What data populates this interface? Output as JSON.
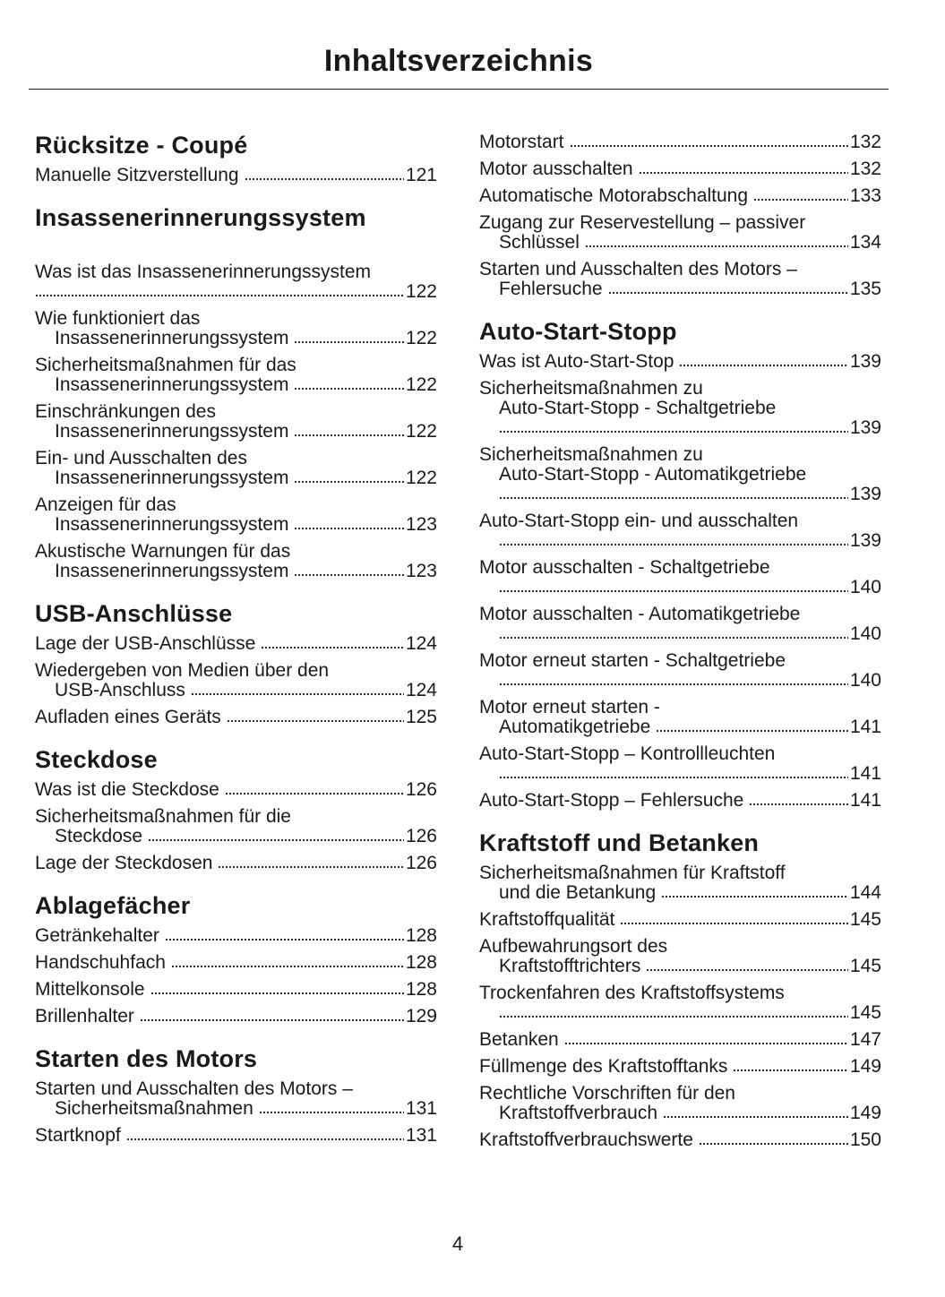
{
  "title": "Inhaltsverzeichnis",
  "page_number": "4",
  "columns": [
    {
      "blocks": [
        {
          "type": "heading",
          "text": "Rücksitze - Coupé"
        },
        {
          "type": "entry",
          "lines": [
            "Manuelle Sitzverstellung"
          ],
          "page": "121"
        },
        {
          "type": "heading",
          "text": "Insassenerinnerungssystem",
          "extra_gap": true
        },
        {
          "type": "entry",
          "lines": [
            "Was ist das Insassenerinnerungssystem",
            ""
          ],
          "page": "122",
          "leader_unindented": true
        },
        {
          "type": "entry",
          "lines": [
            "Wie funktioniert das",
            "Insassenerinnerungssystem"
          ],
          "page": "122"
        },
        {
          "type": "entry",
          "lines": [
            "Sicherheitsmaßnahmen für das",
            "Insassenerinnerungssystem"
          ],
          "page": "122"
        },
        {
          "type": "entry",
          "lines": [
            "Einschränkungen des",
            "Insassenerinnerungssystem"
          ],
          "page": "122"
        },
        {
          "type": "entry",
          "lines": [
            "Ein- und Ausschalten des",
            "Insassenerinnerungssystem"
          ],
          "page": "122"
        },
        {
          "type": "entry",
          "lines": [
            "Anzeigen für das",
            "Insassenerinnerungssystem"
          ],
          "page": "123"
        },
        {
          "type": "entry",
          "lines": [
            "Akustische Warnungen für das",
            "Insassenerinnerungssystem"
          ],
          "page": "123"
        },
        {
          "type": "heading",
          "text": "USB-Anschlüsse"
        },
        {
          "type": "entry",
          "lines": [
            "Lage der USB-Anschlüsse"
          ],
          "page": "124"
        },
        {
          "type": "entry",
          "lines": [
            "Wiedergeben von Medien über den",
            "USB-Anschluss"
          ],
          "page": "124"
        },
        {
          "type": "entry",
          "lines": [
            "Aufladen eines Geräts"
          ],
          "page": "125"
        },
        {
          "type": "heading",
          "text": "Steckdose"
        },
        {
          "type": "entry",
          "lines": [
            "Was ist die Steckdose"
          ],
          "page": "126"
        },
        {
          "type": "entry",
          "lines": [
            "Sicherheitsmaßnahmen für die",
            "Steckdose"
          ],
          "page": "126"
        },
        {
          "type": "entry",
          "lines": [
            "Lage der Steckdosen"
          ],
          "page": "126"
        },
        {
          "type": "heading",
          "text": "Ablagefächer"
        },
        {
          "type": "entry",
          "lines": [
            "Getränkehalter"
          ],
          "page": "128"
        },
        {
          "type": "entry",
          "lines": [
            "Handschuhfach"
          ],
          "page": "128"
        },
        {
          "type": "entry",
          "lines": [
            "Mittelkonsole"
          ],
          "page": "128"
        },
        {
          "type": "entry",
          "lines": [
            "Brillenhalter"
          ],
          "page": "129"
        },
        {
          "type": "heading",
          "text": "Starten des Motors"
        },
        {
          "type": "entry",
          "lines": [
            "Starten und Ausschalten des Motors –",
            "Sicherheitsmaßnahmen"
          ],
          "page": "131"
        },
        {
          "type": "entry",
          "lines": [
            "Startknopf"
          ],
          "page": "131"
        }
      ]
    },
    {
      "blocks": [
        {
          "type": "entry",
          "lines": [
            "Motorstart"
          ],
          "page": "132"
        },
        {
          "type": "entry",
          "lines": [
            "Motor ausschalten"
          ],
          "page": "132"
        },
        {
          "type": "entry",
          "lines": [
            "Automatische Motorabschaltung"
          ],
          "page": "133"
        },
        {
          "type": "entry",
          "lines": [
            "Zugang zur Reservestellung – passiver",
            "Schlüssel"
          ],
          "page": "134"
        },
        {
          "type": "entry",
          "lines": [
            "Starten und Ausschalten des Motors –",
            "Fehlersuche"
          ],
          "page": "135"
        },
        {
          "type": "heading",
          "text": "Auto-Start-Stopp"
        },
        {
          "type": "entry",
          "lines": [
            "Was ist Auto-Start-Stop"
          ],
          "page": "139"
        },
        {
          "type": "entry",
          "lines": [
            "Sicherheitsmaßnahmen zu",
            "Auto-Start-Stopp - Schaltgetriebe",
            ""
          ],
          "page": "139"
        },
        {
          "type": "entry",
          "lines": [
            "Sicherheitsmaßnahmen zu",
            "Auto-Start-Stopp - Automatikgetriebe",
            ""
          ],
          "page": "139"
        },
        {
          "type": "entry",
          "lines": [
            "Auto-Start-Stopp ein- und ausschalten",
            ""
          ],
          "page": "139"
        },
        {
          "type": "entry",
          "lines": [
            "Motor ausschalten - Schaltgetriebe",
            ""
          ],
          "page": "140"
        },
        {
          "type": "entry",
          "lines": [
            "Motor ausschalten - Automatikgetriebe",
            ""
          ],
          "page": "140"
        },
        {
          "type": "entry",
          "lines": [
            "Motor erneut starten - Schaltgetriebe",
            ""
          ],
          "page": "140"
        },
        {
          "type": "entry",
          "lines": [
            "Motor erneut starten -",
            "Automatikgetriebe"
          ],
          "page": "141"
        },
        {
          "type": "entry",
          "lines": [
            "Auto-Start-Stopp – Kontrollleuchten",
            ""
          ],
          "page": "141"
        },
        {
          "type": "entry",
          "lines": [
            "Auto-Start-Stopp – Fehlersuche"
          ],
          "page": "141"
        },
        {
          "type": "heading",
          "text": "Kraftstoff und Betanken"
        },
        {
          "type": "entry",
          "lines": [
            "Sicherheitsmaßnahmen für Kraftstoff",
            "und die Betankung"
          ],
          "page": "144"
        },
        {
          "type": "entry",
          "lines": [
            "Kraftstoffqualität"
          ],
          "page": "145"
        },
        {
          "type": "entry",
          "lines": [
            "Aufbewahrungsort des",
            "Kraftstofftrichters"
          ],
          "page": "145"
        },
        {
          "type": "entry",
          "lines": [
            "Trockenfahren des Kraftstoffsystems",
            ""
          ],
          "page": "145"
        },
        {
          "type": "entry",
          "lines": [
            "Betanken"
          ],
          "page": "147"
        },
        {
          "type": "entry",
          "lines": [
            "Füllmenge des Kraftstofftanks"
          ],
          "page": "149"
        },
        {
          "type": "entry",
          "lines": [
            "Rechtliche Vorschriften für den",
            "Kraftstoffverbrauch"
          ],
          "page": "149"
        },
        {
          "type": "entry",
          "lines": [
            "Kraftstoffverbrauchswerte"
          ],
          "page": "150"
        }
      ]
    }
  ]
}
